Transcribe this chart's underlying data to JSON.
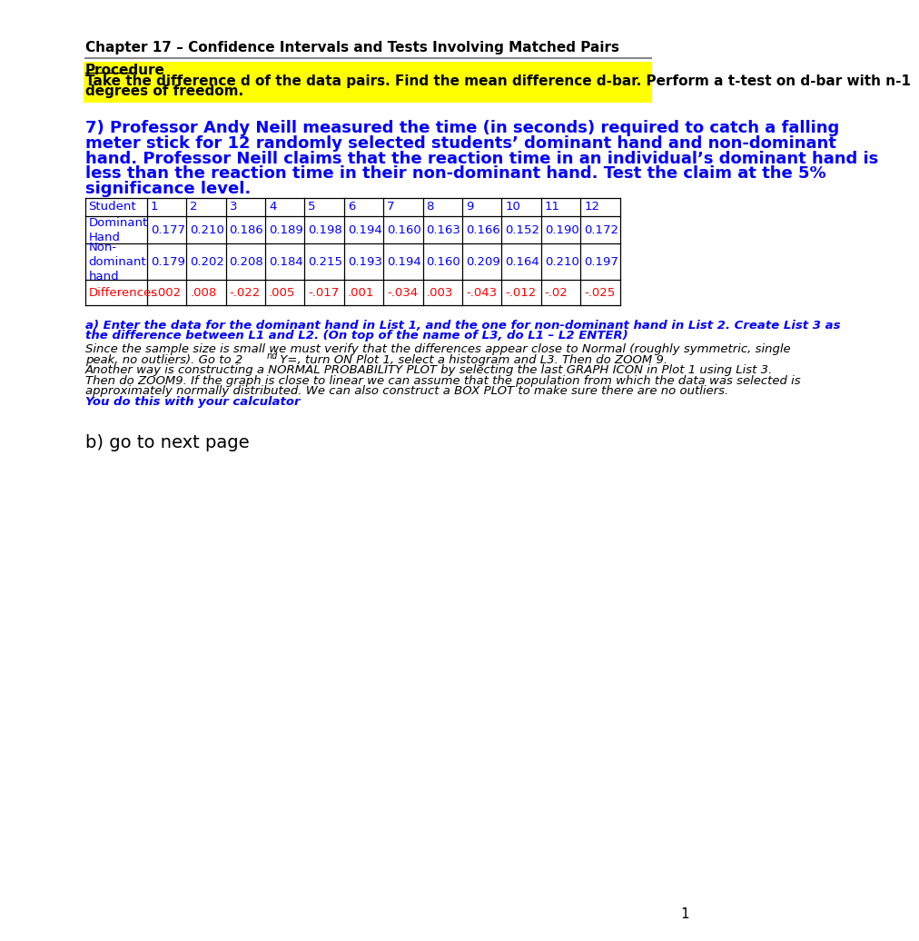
{
  "title": "Chapter 17 – Confidence Intervals and Tests Involving Matched Pairs",
  "procedure_label": "Procedure",
  "procedure_line1": "Take the difference d of the data pairs. Find the mean difference d-bar. Perform a t-test on d-bar with n-1",
  "procedure_line2": "degrees of freedom.",
  "question_line1": "7) Professor Andy Neill measured the time (in seconds) required to catch a falling",
  "question_line2": "meter stick for 12 randomly selected students’ dominant hand and non-dominant",
  "question_line3": "hand. Professor Neill claims that the reaction time in an individual’s dominant hand is",
  "question_line4": "less than the reaction time in their non-dominant hand. Test the claim at the 5%",
  "question_line5": "significance level.",
  "table_headers": [
    "Student",
    "1",
    "2",
    "3",
    "4",
    "5",
    "6",
    "7",
    "8",
    "9",
    "10",
    "11",
    "12"
  ],
  "table_row1_label": "Dominant\nHand",
  "table_row1": [
    "0.177",
    "0.210",
    "0.186",
    "0.189",
    "0.198",
    "0.194",
    "0.160",
    "0.163",
    "0.166",
    "0.152",
    "0.190",
    "0.172"
  ],
  "table_row2_label": "Non-\ndominant\nhand",
  "table_row2": [
    "0.179",
    "0.202",
    "0.208",
    "0.184",
    "0.215",
    "0.193",
    "0.194",
    "0.160",
    "0.209",
    "0.164",
    "0.210",
    "0.197"
  ],
  "table_row3_label": "Differences",
  "table_row3": [
    "-.002",
    ".008",
    "-.022",
    ".005",
    "-.017",
    ".001",
    "-.034",
    ".003",
    "-.043",
    "-.012",
    "-.02",
    "-.025"
  ],
  "part_a_bold1": "a) ",
  "part_a_bold2": "Enter the data for the dominant hand in List 1, and the one for non-dominant hand in List 2. Create List 3 as",
  "part_a_bold3": "the difference between L1 and L2. (On top of the name of L3, do L1 – L2 ENTER)",
  "part_a_normal1": "Since the sample size is small we must verify that the differences appear close to Normal (roughly symmetric, single",
  "part_a_normal2": "peak, no outliers). Go to 2",
  "part_a_super": "nd",
  "part_a_normal3": " Y=, turn ON Plot 1, select a histogram and L3. Then do ZOOM 9.",
  "part_a_normal4": "Another way is constructing a NORMAL PROBABILITY PLOT by selecting the last GRAPH ICON in Plot 1 using List 3.",
  "part_a_normal5": "Then do ZOOM9. If the graph is close to linear we can assume that the population from which the data was selected is",
  "part_a_normal6": "approximately normally distributed. We can also construct a BOX PLOT to make sure there are no outliers.",
  "part_a_blue": "You do this with your calculator",
  "part_b": "b) go to next page",
  "page_number": "1",
  "color_blue": "#0000FF",
  "color_red": "#FF0000",
  "color_black": "#000000",
  "color_yellow_bg": "#FFFF00",
  "color_white": "#FFFFFF",
  "color_table_border": "#000000",
  "color_gray_line": "#888888"
}
